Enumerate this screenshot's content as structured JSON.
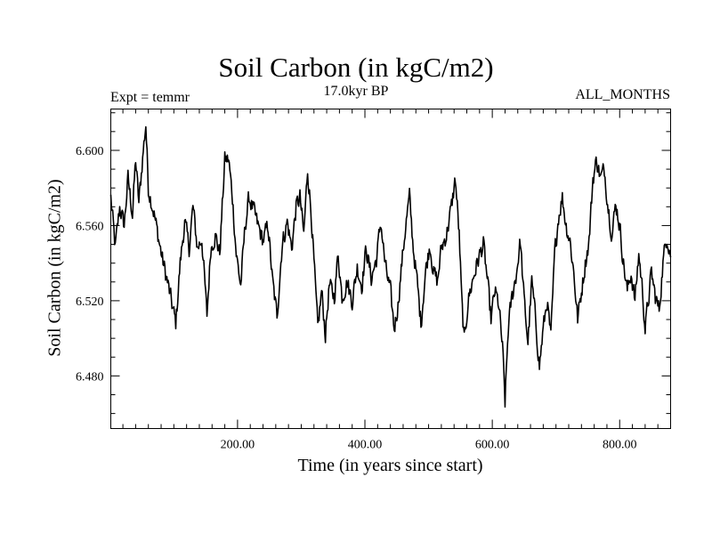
{
  "chart_data": {
    "type": "line",
    "title": "Soil Carbon (in kgC/m2)",
    "subtitle": "17.0kyr BP",
    "expt_label": "Expt = temmr",
    "months_label": "ALL_MONTHS",
    "xlabel": "Time (in years since start)",
    "ylabel": "Soil Carbon (in kgC/m2)",
    "xlim": [
      1,
      880
    ],
    "ylim": [
      6.452,
      6.622
    ],
    "x_ticks": [
      200,
      400,
      600,
      800
    ],
    "x_tick_labels": [
      "200.00",
      "400.00",
      "600.00",
      "800.00"
    ],
    "y_ticks": [
      6.48,
      6.52,
      6.56,
      6.6
    ],
    "y_tick_labels": [
      "6.480",
      "6.520",
      "6.560",
      "6.600"
    ],
    "x_minor_step": 20,
    "y_minor_step": 0.01,
    "series": [
      {
        "name": "Soil Carbon",
        "color": "#000000",
        "anchors": [
          [
            1,
            6.575
          ],
          [
            8,
            6.548
          ],
          [
            15,
            6.57
          ],
          [
            22,
            6.56
          ],
          [
            28,
            6.585
          ],
          [
            35,
            6.566
          ],
          [
            40,
            6.595
          ],
          [
            45,
            6.572
          ],
          [
            52,
            6.6
          ],
          [
            56,
            6.614
          ],
          [
            60,
            6.58
          ],
          [
            68,
            6.568
          ],
          [
            75,
            6.555
          ],
          [
            82,
            6.542
          ],
          [
            90,
            6.53
          ],
          [
            97,
            6.518
          ],
          [
            103,
            6.508
          ],
          [
            110,
            6.54
          ],
          [
            117,
            6.562
          ],
          [
            124,
            6.548
          ],
          [
            130,
            6.57
          ],
          [
            137,
            6.548
          ],
          [
            144,
            6.553
          ],
          [
            152,
            6.512
          ],
          [
            158,
            6.548
          ],
          [
            165,
            6.555
          ],
          [
            172,
            6.545
          ],
          [
            180,
            6.595
          ],
          [
            186,
            6.595
          ],
          [
            192,
            6.575
          ],
          [
            198,
            6.545
          ],
          [
            205,
            6.528
          ],
          [
            212,
            6.56
          ],
          [
            218,
            6.575
          ],
          [
            225,
            6.568
          ],
          [
            232,
            6.56
          ],
          [
            240,
            6.552
          ],
          [
            248,
            6.56
          ],
          [
            255,
            6.53
          ],
          [
            262,
            6.512
          ],
          [
            270,
            6.55
          ],
          [
            278,
            6.562
          ],
          [
            285,
            6.548
          ],
          [
            292,
            6.57
          ],
          [
            298,
            6.575
          ],
          [
            304,
            6.555
          ],
          [
            310,
            6.59
          ],
          [
            316,
            6.565
          ],
          [
            322,
            6.528
          ],
          [
            326,
            6.505
          ],
          [
            332,
            6.525
          ],
          [
            338,
            6.502
          ],
          [
            344,
            6.528
          ],
          [
            352,
            6.522
          ],
          [
            358,
            6.545
          ],
          [
            364,
            6.522
          ],
          [
            372,
            6.53
          ],
          [
            380,
            6.52
          ],
          [
            388,
            6.538
          ],
          [
            395,
            6.528
          ],
          [
            402,
            6.548
          ],
          [
            410,
            6.532
          ],
          [
            418,
            6.542
          ],
          [
            425,
            6.562
          ],
          [
            432,
            6.538
          ],
          [
            440,
            6.525
          ],
          [
            446,
            6.505
          ],
          [
            452,
            6.518
          ],
          [
            458,
            6.54
          ],
          [
            464,
            6.56
          ],
          [
            470,
            6.575
          ],
          [
            476,
            6.548
          ],
          [
            482,
            6.53
          ],
          [
            488,
            6.508
          ],
          [
            495,
            6.535
          ],
          [
            502,
            6.55
          ],
          [
            508,
            6.535
          ],
          [
            514,
            6.53
          ],
          [
            520,
            6.548
          ],
          [
            528,
            6.555
          ],
          [
            536,
            6.57
          ],
          [
            542,
            6.585
          ],
          [
            548,
            6.555
          ],
          [
            552,
            6.52
          ],
          [
            556,
            6.498
          ],
          [
            562,
            6.52
          ],
          [
            570,
            6.532
          ],
          [
            578,
            6.542
          ],
          [
            586,
            6.55
          ],
          [
            592,
            6.532
          ],
          [
            598,
            6.51
          ],
          [
            604,
            6.525
          ],
          [
            610,
            6.518
          ],
          [
            616,
            6.495
          ],
          [
            620,
            6.466
          ],
          [
            625,
            6.505
          ],
          [
            630,
            6.52
          ],
          [
            638,
            6.535
          ],
          [
            644,
            6.552
          ],
          [
            650,
            6.52
          ],
          [
            656,
            6.498
          ],
          [
            662,
            6.53
          ],
          [
            668,
            6.51
          ],
          [
            674,
            6.485
          ],
          [
            680,
            6.505
          ],
          [
            686,
            6.52
          ],
          [
            692,
            6.5
          ],
          [
            698,
            6.545
          ],
          [
            704,
            6.565
          ],
          [
            710,
            6.575
          ],
          [
            716,
            6.56
          ],
          [
            722,
            6.552
          ],
          [
            728,
            6.535
          ],
          [
            734,
            6.51
          ],
          [
            740,
            6.525
          ],
          [
            746,
            6.54
          ],
          [
            752,
            6.552
          ],
          [
            758,
            6.585
          ],
          [
            764,
            6.595
          ],
          [
            770,
            6.585
          ],
          [
            776,
            6.59
          ],
          [
            782,
            6.57
          ],
          [
            788,
            6.555
          ],
          [
            794,
            6.572
          ],
          [
            800,
            6.56
          ],
          [
            806,
            6.54
          ],
          [
            812,
            6.525
          ],
          [
            818,
            6.535
          ],
          [
            824,
            6.52
          ],
          [
            830,
            6.545
          ],
          [
            836,
            6.525
          ],
          [
            840,
            6.505
          ],
          [
            845,
            6.52
          ],
          [
            850,
            6.535
          ],
          [
            856,
            6.522
          ],
          [
            862,
            6.515
          ],
          [
            868,
            6.54
          ],
          [
            874,
            6.555
          ],
          [
            880,
            6.545
          ]
        ]
      }
    ]
  }
}
